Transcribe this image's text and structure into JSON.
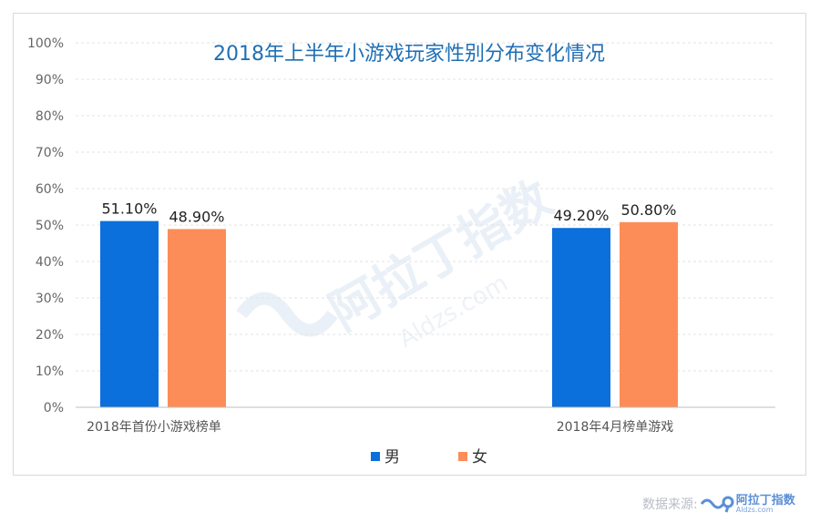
{
  "chart_data": {
    "type": "bar",
    "title": "2018年上半年小游戏玩家性别分布变化情况",
    "categories": [
      "2018年首份小游戏榜单",
      "2018年4月榜单游戏"
    ],
    "series": [
      {
        "name": "男",
        "values": [
          51.1,
          49.2
        ],
        "labels": [
          "51.10%",
          "49.20%"
        ],
        "color": "#0b6fdc"
      },
      {
        "name": "女",
        "values": [
          48.9,
          50.8
        ],
        "labels": [
          "48.90%",
          "50.80%"
        ],
        "color": "#fd8d58"
      }
    ],
    "yticks": [
      "0%",
      "10%",
      "20%",
      "30%",
      "40%",
      "50%",
      "60%",
      "70%",
      "80%",
      "90%",
      "100%"
    ],
    "ylim": [
      0,
      100
    ],
    "grid": true,
    "legend_position": "bottom"
  },
  "watermark": {
    "text": "阿拉丁指数",
    "url": "Aldzs.com"
  },
  "source": {
    "label": "数据来源:",
    "logo_text": "阿拉丁指数",
    "logo_url": "Aldzs.com"
  }
}
